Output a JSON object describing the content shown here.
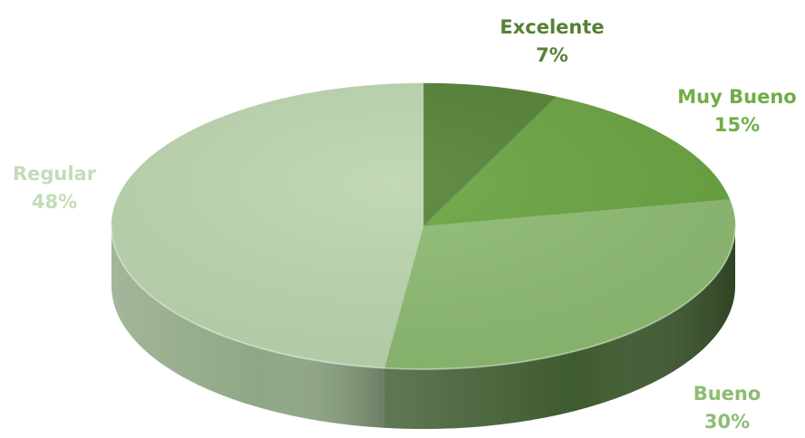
{
  "chart_data": {
    "type": "pie",
    "title": "",
    "slices": [
      {
        "label": "Excelente",
        "value": 7,
        "value_label": "7%",
        "color": "#548235",
        "side_color": "#3b5c25",
        "label_color": "#548235"
      },
      {
        "label": "Muy Bueno",
        "value": 15,
        "value_label": "15%",
        "color": "#6aa341",
        "side_color": "#4a722d",
        "label_color": "#70ad47"
      },
      {
        "label": "Bueno",
        "value": 30,
        "value_label": "30%",
        "color": "#8dbb71",
        "side_color": "#3e5a2f",
        "label_color": "#8fbc74"
      },
      {
        "label": "Regular",
        "value": 48,
        "value_label": "48%",
        "color": "#bcd5ae",
        "side_color": "#8ea784",
        "label_color": "#c5dcb8"
      }
    ],
    "legend": "none",
    "style": "3d"
  }
}
